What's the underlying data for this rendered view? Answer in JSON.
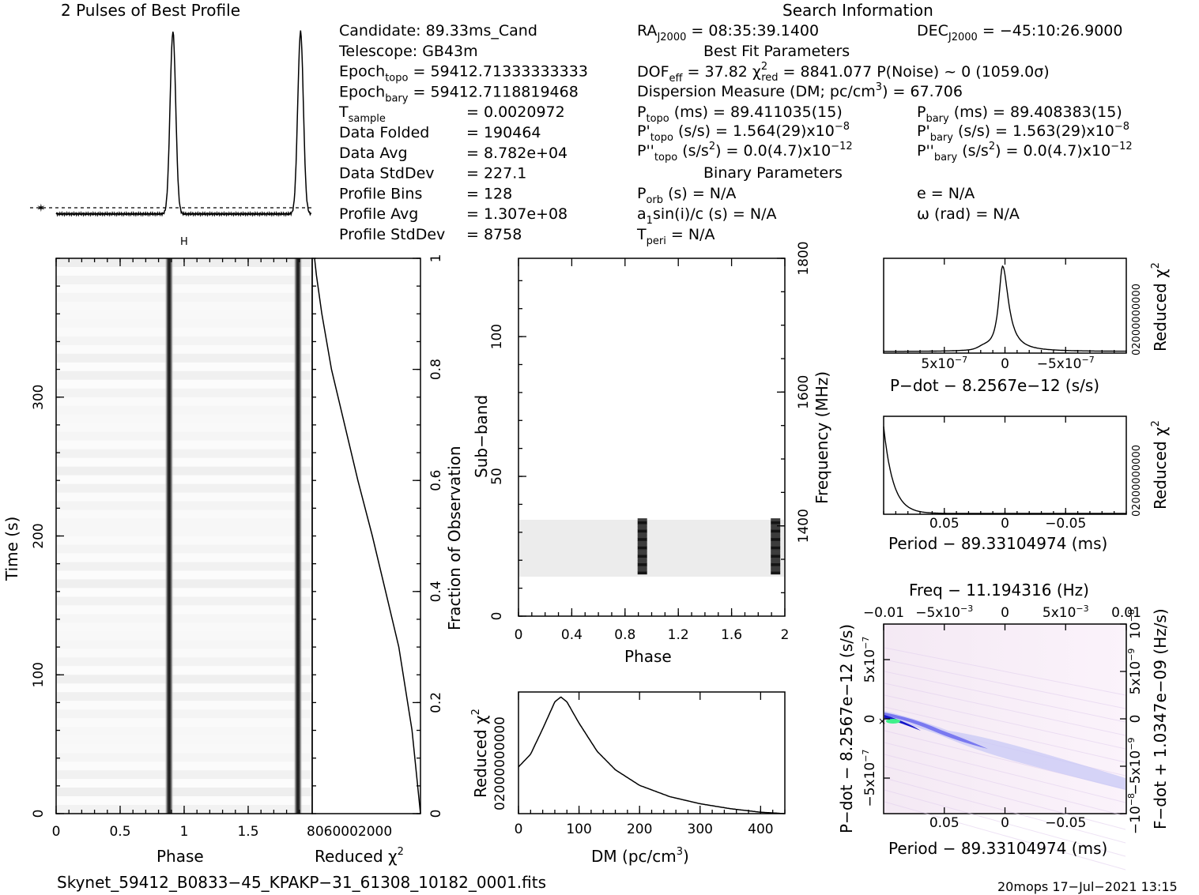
{
  "profile_panel": {
    "title": "2 Pulses of Best Profile"
  },
  "info_column_1": [
    {
      "label": "Candidate:",
      "sub": "",
      "rest": "",
      "value": "  89.33ms_Cand"
    },
    {
      "label": "Telescope:",
      "sub": "",
      "rest": "",
      "value": "  GB43m"
    },
    {
      "label": "Epoch",
      "sub": "topo",
      "rest": "",
      "value": " = 59412.71333333333"
    },
    {
      "label": "Epoch",
      "sub": "bary",
      "rest": "",
      "value": " = 59412.7118819468"
    },
    {
      "label": "T",
      "sub": "sample",
      "rest": "",
      "value": "=   0.0020972"
    },
    {
      "label": "Data Folded",
      "sub": "",
      "rest": "",
      "value": "=   190464"
    },
    {
      "label": "Data Avg",
      "sub": "",
      "rest": "",
      "value": "=   8.782e+04"
    },
    {
      "label": "Data StdDev",
      "sub": "",
      "rest": "",
      "value": "=   227.1"
    },
    {
      "label": "Profile Bins",
      "sub": "",
      "rest": "",
      "value": "=   128"
    },
    {
      "label": "Profile Avg",
      "sub": "",
      "rest": "",
      "value": "=   1.307e+08"
    },
    {
      "label": "Profile StdDev",
      "sub": "",
      "rest": "",
      "value": "=   8758"
    }
  ],
  "search_info": {
    "title": "Search Information",
    "ra_label": "RA",
    "ra_sub": "J2000",
    "ra_value": " = 08:35:39.1400",
    "dec_label": "DEC",
    "dec_sub": "J2000",
    "dec_value": " = −45:10:26.9000",
    "best_fit_title": "Best Fit Parameters",
    "dof_label": "DOF",
    "dof_sub": "eff",
    "dof_value": " = 37.82  χ",
    "chi_sup": "2",
    "chi_sub": "red",
    "chi_value": " = 8841.077   P(Noise) ~ 0    (1059.0σ)",
    "dm_text": "Dispersion Measure (DM; pc/cm",
    "dm_sup": "3",
    "dm_value": ") = 67.706",
    "ptopo_label": "P",
    "ptopo_sub": "topo",
    "ptopo_value": " (ms) =  89.411035(15)",
    "pbary_label": "P",
    "pbary_sub": "bary",
    "pbary_value": " (ms) =  89.408383(15)",
    "pdtopo_label": "P'",
    "pdtopo_sub": "topo",
    "pdtopo_value": " (s/s) =  1.564(29)x10",
    "pdtopo_sup": "−8",
    "pdbary_label": "P'",
    "pdbary_sub": "bary",
    "pdbary_value": " (s/s) =  1.563(29)x10",
    "pdbary_sup": "−8",
    "pddtopo_label": "P''",
    "pddtopo_sub": "topo",
    "pddtopo_value": " (s/s",
    "pddtopo_sup1": "2",
    "pddtopo_value2": ") = 0.0(4.7)x10",
    "pddtopo_sup2": "−12",
    "pddbary_label": "P''",
    "pddbary_sub": "bary",
    "pddbary_value": " (s/s",
    "pddbary_sup1": "2",
    "pddbary_value2": ") = 0.0(4.7)x10",
    "pddbary_sup2": "−12",
    "binary_title": "Binary Parameters",
    "porb_label": "P",
    "porb_sub": "orb",
    "porb_value": " (s) = N/A",
    "e_text": "e = N/A",
    "a1_label": "a",
    "a1_sub": "1",
    "a1_value": "sin(i)/c (s) = N/A",
    "omega_text": "ω (rad) = N/A",
    "tperi_label": "T",
    "tperi_sub": "peri",
    "tperi_value": " = N/A"
  },
  "footer": {
    "filename": "Skynet_59412_B0833−45_KPAKP−31_61308_10182_0001.fits",
    "stamp": "20mops  17−Jul−2021  13:15"
  },
  "chart_data": [
    {
      "id": "pulse_profile",
      "type": "line",
      "title": "2 Pulses of Best Profile",
      "x": "phase",
      "xlim": [
        0,
        2
      ],
      "pulse_centers": [
        0.915,
        1.915
      ],
      "pulse_width": 0.022,
      "baseline": 0.05,
      "peak": 1.0,
      "noise_level_marker": "dotted line"
    },
    {
      "id": "time_phase",
      "type": "heatmap",
      "xlabel": "Phase",
      "ylabel": "Time (s)",
      "xlim": [
        0,
        2
      ],
      "ylim": [
        0,
        400
      ],
      "xticks": [
        "0",
        "0.5",
        "1",
        "1.5"
      ],
      "yticks": [
        "0",
        "100",
        "200",
        "300"
      ],
      "pulse_phase": [
        0.88,
        1.88
      ],
      "colormap": "grayscale"
    },
    {
      "id": "reduced_chi2_time",
      "type": "line",
      "xlabel": "Reduced χ",
      "xlabel_sup": "2",
      "ylabel": "Fraction of Observation",
      "xtick_label": "8060002000",
      "yticks": [
        "0",
        "0.2",
        "0.4",
        "0.6",
        "0.8",
        "1"
      ],
      "x": [
        8800,
        8650,
        8200,
        7400,
        6300,
        5200,
        4000,
        2900,
        1800,
        700,
        0
      ],
      "y": [
        1.0,
        0.97,
        0.9,
        0.8,
        0.7,
        0.6,
        0.5,
        0.4,
        0.3,
        0.15,
        0.0
      ]
    },
    {
      "id": "subband_phase",
      "type": "heatmap",
      "xlabel": "Phase",
      "ylabel": "Sub−band",
      "y2label": "Frequency (MHz)",
      "xlim": [
        0,
        2
      ],
      "ylim": [
        0,
        128
      ],
      "xticks": [
        "0",
        "0.4",
        "0.8",
        "1.2",
        "1.6",
        "2"
      ],
      "yticks": [
        "0",
        "50",
        "100"
      ],
      "y2ticks": [
        "1400",
        "1600",
        "1800"
      ],
      "active_subbands": [
        15,
        35
      ],
      "pulse_phase": [
        0.93,
        1.93
      ],
      "colormap": "grayscale"
    },
    {
      "id": "dm_chi2",
      "type": "line",
      "xlabel": "DM (pc/cm",
      "xlabel_sup": "3",
      "ylabel": "Reduced χ",
      "ylabel_sup": "2",
      "ytick_label": "02000000000",
      "xticks": [
        "0",
        "100",
        "200",
        "300",
        "400"
      ],
      "xlim": [
        0,
        440
      ],
      "x": [
        0,
        20,
        40,
        60,
        70,
        80,
        100,
        130,
        160,
        200,
        250,
        300,
        350,
        400,
        440
      ],
      "y": [
        3300,
        4200,
        6000,
        7900,
        8250,
        7900,
        6400,
        4400,
        3100,
        2000,
        1200,
        700,
        350,
        100,
        0
      ]
    },
    {
      "id": "pdot_chi2",
      "type": "line",
      "xlabel": "P−dot − 8.2567e−12 (s/s)",
      "ylabel": "Reduced χ",
      "ylabel_sup": "2",
      "ytick_label": "02000000000",
      "xticks": [
        "5x10",
        "0",
        "−5x10"
      ],
      "xtick_sup": "−7",
      "xlim": [
        1e-06,
        -1e-06
      ]
    },
    {
      "id": "period_chi2",
      "type": "line",
      "xlabel": "Period − 89.33104974 (ms)",
      "ylabel": "Reduced χ",
      "ylabel_sup": "2",
      "ytick_label": "02000000000",
      "xticks": [
        "0.05",
        "0",
        "−0.05"
      ],
      "xlim": [
        0.1,
        -0.1
      ]
    },
    {
      "id": "period_pdot",
      "type": "heatmap",
      "title": "Freq − 11.194316 (Hz)",
      "xlabel": "Period − 89.33104974 (ms)",
      "ylabel": "P−dot − 8.2567e−12 (s/s)",
      "y2label": "F−dot + 1.0347e−09 (Hz/s)",
      "xticks": [
        "0.05",
        "0",
        "−0.05"
      ],
      "x2ticks": [
        "−0.01",
        "−5x10",
        "0",
        "5x10",
        "0.01"
      ],
      "x2tick_sup": "−3",
      "yticks": [
        "−5x10",
        "0",
        "5x10"
      ],
      "ytick_sup": "−7",
      "y2ticks": [
        "10",
        "5x10",
        "0",
        "−5x10",
        "−10"
      ],
      "y2tick_sup": [
        "−8",
        "−9",
        "",
        "−9",
        "−8"
      ],
      "colormap": "white-pink-blue-cyan"
    }
  ]
}
